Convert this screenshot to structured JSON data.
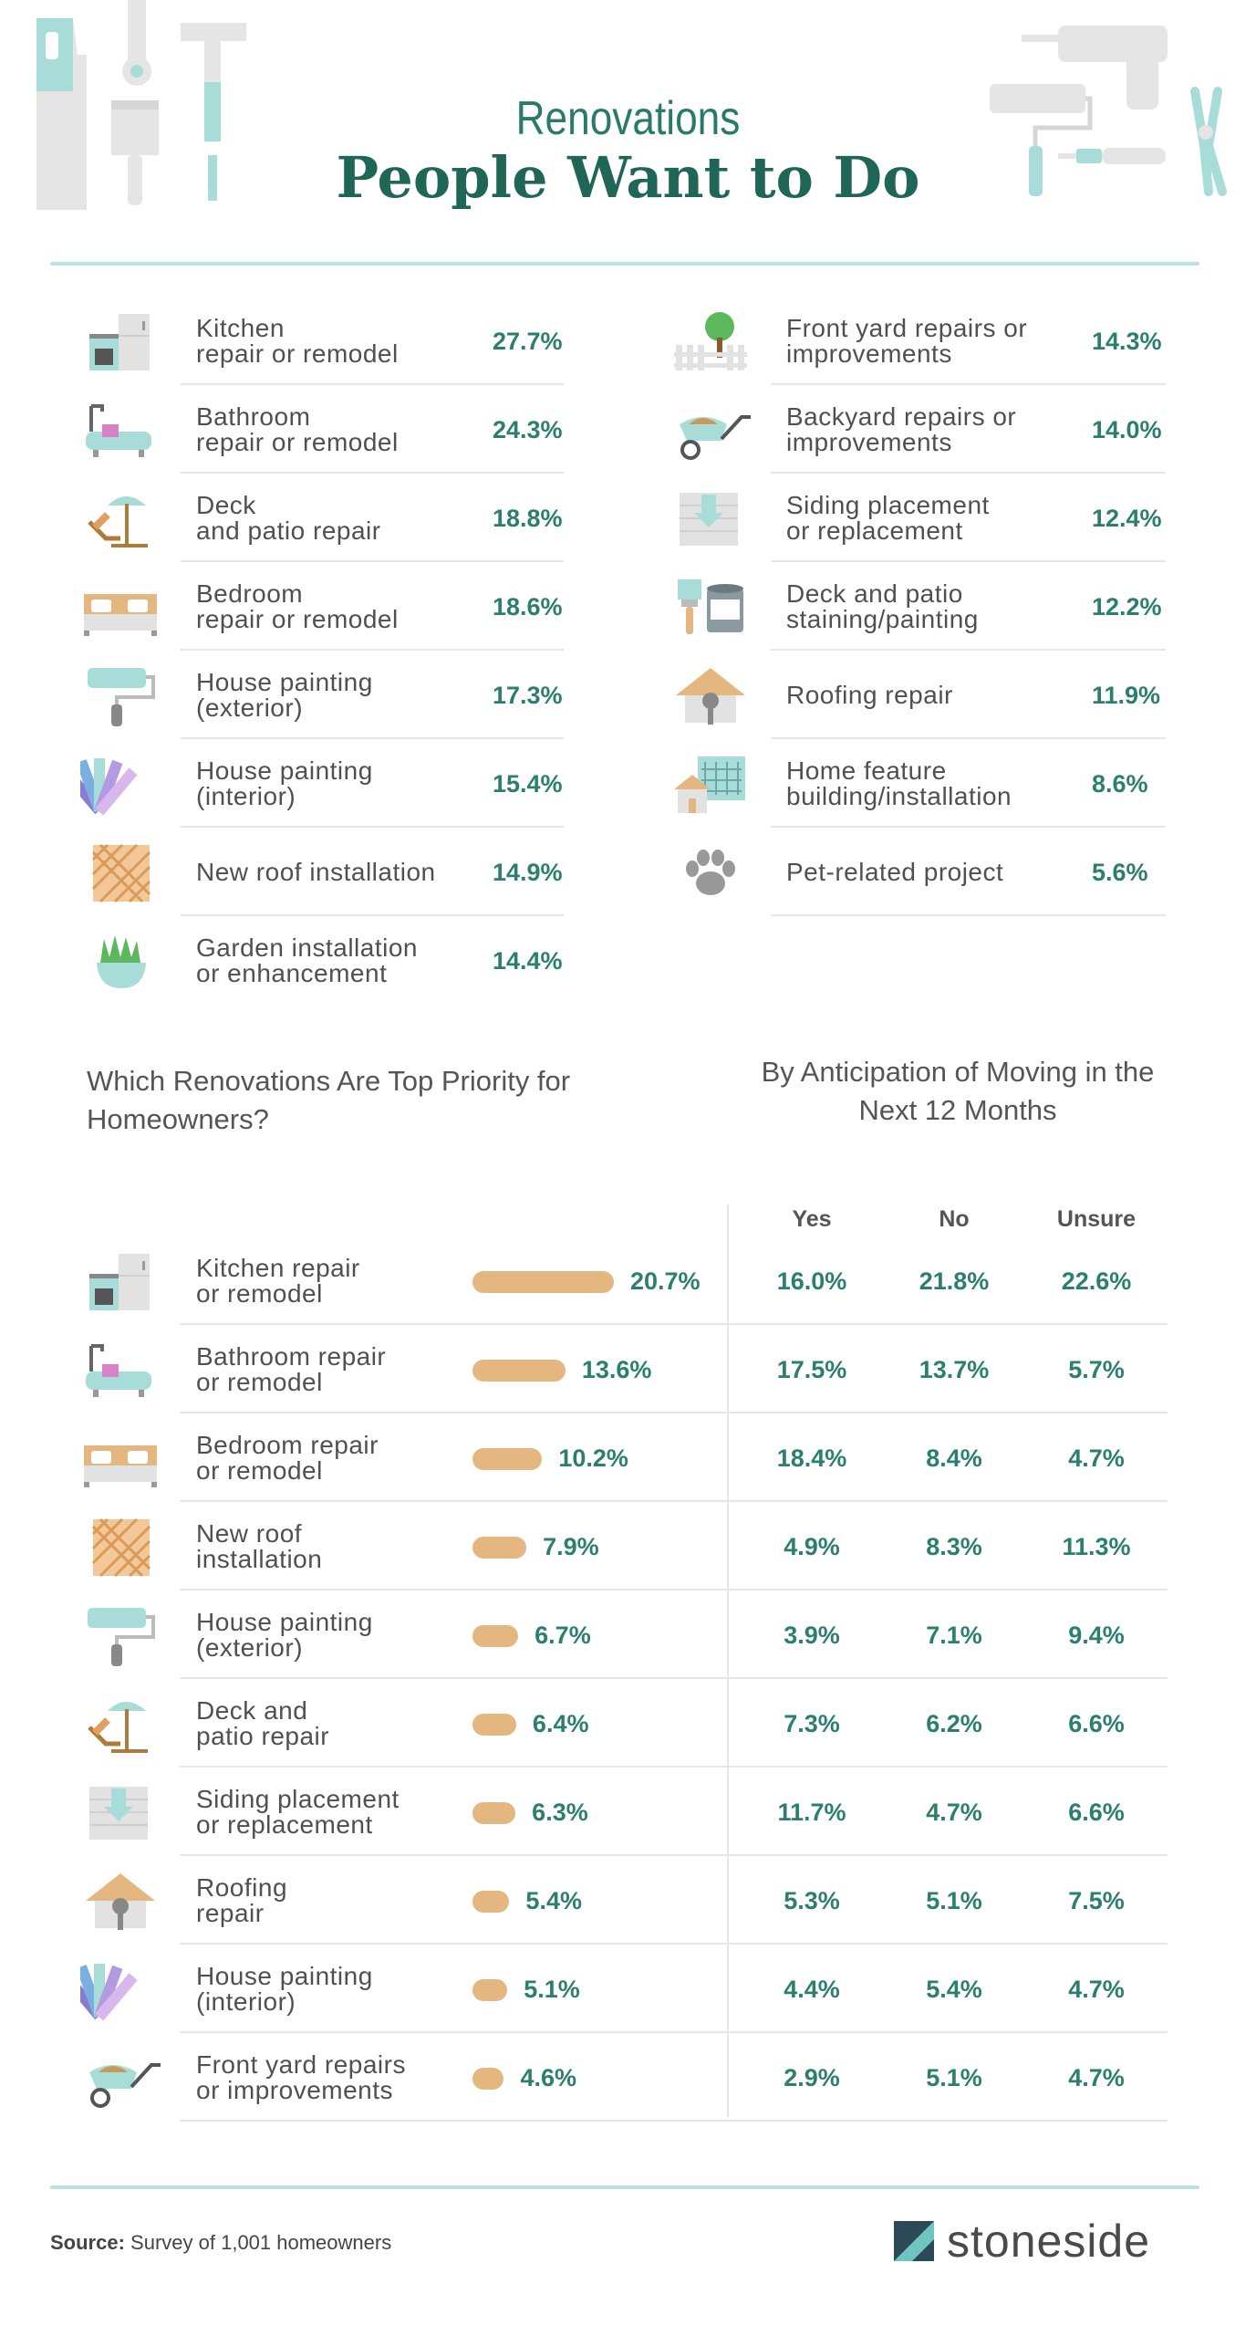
{
  "title": {
    "line1": "Renovations",
    "line2": "People Want to Do"
  },
  "colors": {
    "teal": "#2c7f6f",
    "bar": "#e3b77f",
    "rule": "#b8e2e3",
    "tool_teal": "#a8dcd9",
    "tool_gray": "#e5e5e5"
  },
  "top_list": {
    "left": [
      {
        "label": "Kitchen\nrepair or remodel",
        "value": "27.7%",
        "icon": "kitchen-icon"
      },
      {
        "label": "Bathroom\nrepair or remodel",
        "value": "24.3%",
        "icon": "bathtub-icon"
      },
      {
        "label": "Deck\nand patio repair",
        "value": "18.8%",
        "icon": "deck-chair-icon"
      },
      {
        "label": "Bedroom\nrepair or remodel",
        "value": "18.6%",
        "icon": "bed-icon"
      },
      {
        "label": "House painting\n(exterior)",
        "value": "17.3%",
        "icon": "paint-roller-icon"
      },
      {
        "label": "House painting\n(interior)",
        "value": "15.4%",
        "icon": "color-swatch-icon"
      },
      {
        "label": "New roof installation",
        "value": "14.9%",
        "icon": "roof-tile-icon"
      },
      {
        "label": "Garden installation\nor enhancement",
        "value": "14.4%",
        "icon": "plant-pot-icon"
      }
    ],
    "right": [
      {
        "label": "Front yard repairs or\nimprovements",
        "value": "14.3%",
        "icon": "tree-fence-icon"
      },
      {
        "label": "Backyard repairs or\nimprovements",
        "value": "14.0%",
        "icon": "wheelbarrow-icon"
      },
      {
        "label": "Siding placement\nor replacement",
        "value": "12.4%",
        "icon": "siding-icon"
      },
      {
        "label": "Deck and patio\nstaining/painting",
        "value": "12.2%",
        "icon": "paint-can-icon"
      },
      {
        "label": "Roofing repair",
        "value": "11.9%",
        "icon": "roof-repair-icon"
      },
      {
        "label": "Home feature\nbuilding/installation",
        "value": "8.6%",
        "icon": "house-blueprint-icon"
      },
      {
        "label": "Pet-related project",
        "value": "5.6%",
        "icon": "paw-icon"
      }
    ]
  },
  "section2": {
    "title_left": "Which Renovations Are Top Priority for\nHomeowners?",
    "title_right": "By Anticipation of Moving in the\nNext 12 Months",
    "columns": [
      "Yes",
      "No",
      "Unsure"
    ]
  },
  "chart_data": {
    "type": "bar",
    "title": "Which Renovations Are Top Priority for Homeowners?",
    "categories": [
      "Kitchen repair\nor remodel",
      "Bathroom repair\nor remodel",
      "Bedroom repair\nor remodel",
      "New roof\ninstallation",
      "House painting\n(exterior)",
      "Deck and\npatio repair",
      "Siding placement\nor replacement",
      "Roofing\nrepair",
      "House painting\n(interior)",
      "Front yard repairs\nor improvements"
    ],
    "icons": [
      "kitchen-icon",
      "bathtub-icon",
      "bed-icon",
      "roof-tile-icon",
      "paint-roller-icon",
      "deck-chair-icon",
      "siding-icon",
      "roof-repair-icon",
      "color-swatch-icon",
      "wheelbarrow-icon"
    ],
    "values": [
      20.7,
      13.6,
      10.2,
      7.9,
      6.7,
      6.4,
      6.3,
      5.4,
      5.1,
      4.6
    ],
    "value_labels": [
      "20.7%",
      "13.6%",
      "10.2%",
      "7.9%",
      "6.7%",
      "6.4%",
      "6.3%",
      "5.4%",
      "5.1%",
      "4.6%"
    ],
    "by_moving": {
      "title": "By Anticipation of Moving in the Next 12 Months",
      "series": [
        {
          "name": "Yes",
          "labels": [
            "16.0%",
            "17.5%",
            "18.4%",
            "4.9%",
            "3.9%",
            "7.3%",
            "11.7%",
            "5.3%",
            "4.4%",
            "2.9%"
          ]
        },
        {
          "name": "No",
          "labels": [
            "21.8%",
            "13.7%",
            "8.4%",
            "8.3%",
            "7.1%",
            "6.2%",
            "4.7%",
            "5.1%",
            "5.4%",
            "5.1%"
          ]
        },
        {
          "name": "Unsure",
          "labels": [
            "22.6%",
            "5.7%",
            "4.7%",
            "11.3%",
            "9.4%",
            "6.6%",
            "6.6%",
            "7.5%",
            "4.7%",
            "4.7%"
          ]
        }
      ]
    }
  },
  "footer": {
    "source_label": "Source:",
    "source_text": "Survey of 1,001 homeowners",
    "brand": "stoneside"
  }
}
